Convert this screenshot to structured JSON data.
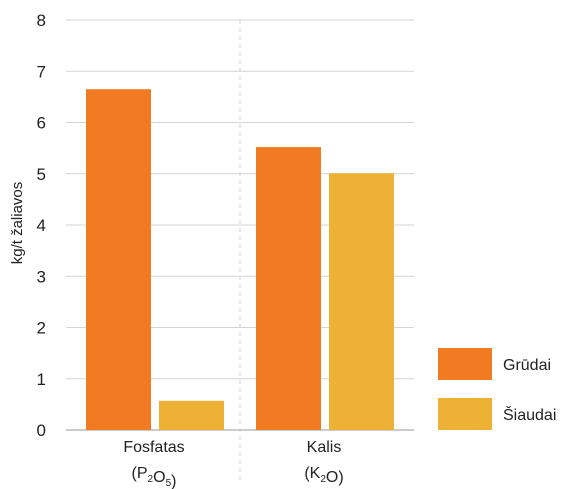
{
  "chart_data": {
    "type": "bar",
    "ylabel": "kg/t žaliavos",
    "ylim": [
      0,
      8
    ],
    "yticks": [
      "0",
      "1",
      "2",
      "3",
      "4",
      "5",
      "6",
      "7",
      "8"
    ],
    "grid": true,
    "legend_position": "bottom-right",
    "categories": [
      {
        "name": "Fosfatas",
        "formula": [
          {
            "t": "(P",
            "sub": false
          },
          {
            "t": "2",
            "sub": true
          },
          {
            "t": "O",
            "sub": false
          },
          {
            "t": "5",
            "sub": true
          },
          {
            "t": ")",
            "sub": false
          }
        ]
      },
      {
        "name": "Kalis",
        "formula": [
          {
            "t": "(K",
            "sub": false
          },
          {
            "t": "2",
            "sub": true
          },
          {
            "t": "O)",
            "sub": false
          }
        ]
      }
    ],
    "series": [
      {
        "name": "Grūdai",
        "color": "#f07b22",
        "values": [
          6.65,
          5.52
        ]
      },
      {
        "name": "Šiaudai",
        "color": "#edb136",
        "values": [
          0.57,
          5.01
        ]
      }
    ]
  }
}
